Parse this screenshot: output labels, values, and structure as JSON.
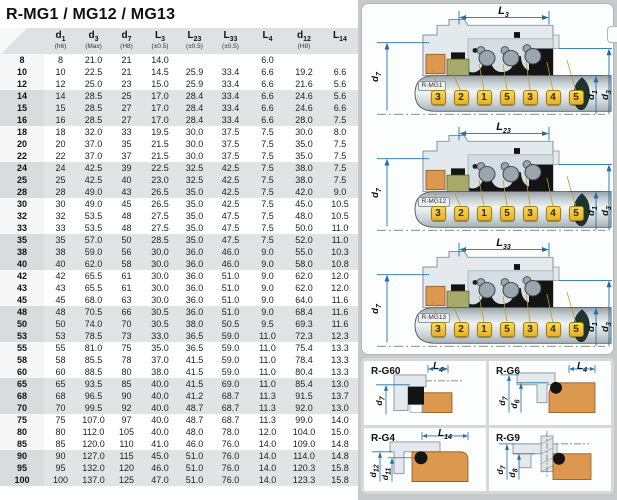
{
  "title": "R-MG1 / MG12 / MG13",
  "colors": {
    "accent_blue": "#2270a8",
    "callout_yellow": "#f3c73f",
    "seal_orange": "#dd9850",
    "seal_olive": "#a6a96b",
    "band_gray": "#e2e3e5",
    "header_gray": "#dfe1e2"
  },
  "table": {
    "columns": [
      {
        "main": "d",
        "sub": "1",
        "tol": "(h6)"
      },
      {
        "main": "d",
        "sub": "3",
        "tol": "(Max)"
      },
      {
        "main": "d",
        "sub": "7",
        "tol": "(H8)"
      },
      {
        "main": "L",
        "sub": "3",
        "tol": "(±0.5)"
      },
      {
        "main": "L",
        "sub": "23",
        "tol": "(±0.5)"
      },
      {
        "main": "L",
        "sub": "33",
        "tol": "(±0.5)"
      },
      {
        "main": "L",
        "sub": "4",
        "tol": ""
      },
      {
        "main": "d",
        "sub": "12",
        "tol": "(H8)"
      },
      {
        "main": "L",
        "sub": "14",
        "tol": ""
      }
    ],
    "rows": [
      [
        "8",
        "8",
        "21.0",
        "21",
        "14.0",
        "",
        "",
        "6.0",
        "",
        ""
      ],
      [
        "10",
        "10",
        "22.5",
        "21",
        "14.5",
        "25.9",
        "33.4",
        "6.6",
        "19.2",
        "6.6"
      ],
      [
        "12",
        "12",
        "25.0",
        "23",
        "15.0",
        "25.9",
        "33.4",
        "6.6",
        "21.6",
        "5.6"
      ],
      [
        "14",
        "14",
        "28.5",
        "25",
        "17.0",
        "28.4",
        "33.4",
        "6.6",
        "24.6",
        "5.6"
      ],
      [
        "15",
        "15",
        "28.5",
        "27",
        "17.0",
        "28.4",
        "33.4",
        "6.6",
        "24.6",
        "6.6"
      ],
      [
        "16",
        "16",
        "28.5",
        "27",
        "17.0",
        "28.4",
        "33.4",
        "6.6",
        "28.0",
        "7.5"
      ],
      [
        "18",
        "18",
        "32.0",
        "33",
        "19.5",
        "30.0",
        "37.5",
        "7.5",
        "30.0",
        "8.0"
      ],
      [
        "20",
        "20",
        "37.0",
        "35",
        "21.5",
        "30.0",
        "37.5",
        "7.5",
        "35.0",
        "7.5"
      ],
      [
        "22",
        "22",
        "37.0",
        "37",
        "21.5",
        "30.0",
        "37.5",
        "7.5",
        "35.0",
        "7.5"
      ],
      [
        "24",
        "24",
        "42.5",
        "39",
        "22.5",
        "32.5",
        "42.5",
        "7.5",
        "38.0",
        "7.5"
      ],
      [
        "25",
        "25",
        "42.5",
        "40",
        "23.0",
        "32.5",
        "42.5",
        "7.5",
        "38.0",
        "7.5"
      ],
      [
        "28",
        "28",
        "49.0",
        "43",
        "26.5",
        "35.0",
        "42.5",
        "7.5",
        "42.0",
        "9.0"
      ],
      [
        "30",
        "30",
        "49.0",
        "45",
        "26.5",
        "35.0",
        "42.5",
        "7.5",
        "45.0",
        "10.5"
      ],
      [
        "32",
        "32",
        "53.5",
        "48",
        "27.5",
        "35.0",
        "47.5",
        "7.5",
        "48.0",
        "10.5"
      ],
      [
        "33",
        "33",
        "53.5",
        "48",
        "27.5",
        "35.0",
        "47.5",
        "7.5",
        "50.0",
        "11.0"
      ],
      [
        "35",
        "35",
        "57.0",
        "50",
        "28.5",
        "35.0",
        "47.5",
        "7.5",
        "52.0",
        "11.0"
      ],
      [
        "38",
        "38",
        "59.0",
        "56",
        "30.0",
        "36.0",
        "46.0",
        "9.0",
        "55.0",
        "10.3"
      ],
      [
        "40",
        "40",
        "62.0",
        "58",
        "30.0",
        "36.0",
        "46.0",
        "9.0",
        "58.0",
        "10.8"
      ],
      [
        "42",
        "42",
        "65.5",
        "61",
        "30.0",
        "36.0",
        "51.0",
        "9.0",
        "62.0",
        "12.0"
      ],
      [
        "43",
        "43",
        "65.5",
        "61",
        "30.0",
        "36.0",
        "51.0",
        "9.0",
        "62.0",
        "12.0"
      ],
      [
        "45",
        "45",
        "68.0",
        "63",
        "30.0",
        "36.0",
        "51.0",
        "9.0",
        "64.0",
        "11.6"
      ],
      [
        "48",
        "48",
        "70.5",
        "66",
        "30.5",
        "36.0",
        "51.0",
        "9.0",
        "68.4",
        "11.6"
      ],
      [
        "50",
        "50",
        "74.0",
        "70",
        "30.5",
        "38.0",
        "50.5",
        "9.5",
        "69.3",
        "11.6"
      ],
      [
        "53",
        "53",
        "78.5",
        "73",
        "33.0",
        "36.5",
        "59.0",
        "11.0",
        "72.3",
        "12.3"
      ],
      [
        "55",
        "55",
        "81.0",
        "75",
        "35.0",
        "36.5",
        "59.0",
        "11.0",
        "75.4",
        "13.3"
      ],
      [
        "58",
        "58",
        "85.5",
        "78",
        "37.0",
        "41.5",
        "59.0",
        "11.0",
        "78.4",
        "13.3"
      ],
      [
        "60",
        "60",
        "88.5",
        "80",
        "38.0",
        "41.5",
        "59.0",
        "11.0",
        "80.4",
        "13.3"
      ],
      [
        "65",
        "65",
        "93.5",
        "85",
        "40.0",
        "41.5",
        "69.0",
        "11.0",
        "85.4",
        "13.0"
      ],
      [
        "68",
        "68",
        "96.5",
        "90",
        "40.0",
        "41.2",
        "68.7",
        "11.3",
        "91.5",
        "13.7"
      ],
      [
        "70",
        "70",
        "99.5",
        "92",
        "40.0",
        "48.7",
        "68.7",
        "11.3",
        "92.0",
        "13.0"
      ],
      [
        "75",
        "75",
        "107.0",
        "97",
        "40.0",
        "48.7",
        "68.7",
        "11.3",
        "99.0",
        "14.0"
      ],
      [
        "80",
        "80",
        "112.0",
        "105",
        "40.0",
        "48.0",
        "78.0",
        "12.0",
        "104.0",
        "15.0"
      ],
      [
        "85",
        "85",
        "120.0",
        "110",
        "41.0",
        "46.0",
        "76.0",
        "14.0",
        "109.0",
        "14.8"
      ],
      [
        "90",
        "90",
        "127.0",
        "115",
        "45.0",
        "51.0",
        "76.0",
        "14.0",
        "114.0",
        "14.8"
      ],
      [
        "95",
        "95",
        "132.0",
        "120",
        "46.0",
        "51.0",
        "76.0",
        "14.0",
        "120.3",
        "15.8"
      ],
      [
        "100",
        "100",
        "137.0",
        "125",
        "47.0",
        "51.0",
        "76.0",
        "14.0",
        "123.3",
        "15.8"
      ]
    ]
  },
  "diagrams": [
    {
      "name": "R-MG1",
      "top_dim": {
        "main": "L",
        "sub": "3"
      },
      "left_dim": {
        "main": "d",
        "sub": "7"
      },
      "right_dim_inner": {
        "main": "d",
        "sub": "1"
      },
      "right_dim_outer": {
        "main": "d",
        "sub": "3"
      },
      "callouts": [
        "3",
        "2",
        "1",
        "5",
        "3",
        "4",
        "5"
      ]
    },
    {
      "name": "R-MG12",
      "top_dim": {
        "main": "L",
        "sub": "23"
      },
      "left_dim": {
        "main": "d",
        "sub": "7"
      },
      "right_dim_inner": {
        "main": "d",
        "sub": "1"
      },
      "right_dim_outer": {
        "main": "d",
        "sub": "3"
      },
      "callouts": [
        "3",
        "2",
        "1",
        "5",
        "3",
        "4",
        "5"
      ]
    },
    {
      "name": "R-MG13",
      "top_dim": {
        "main": "L",
        "sub": "33"
      },
      "left_dim": {
        "main": "d",
        "sub": "7"
      },
      "right_dim_inner": {
        "main": "d",
        "sub": "1"
      },
      "right_dim_outer": {
        "main": "d",
        "sub": "3"
      },
      "callouts": [
        "3",
        "2",
        "1",
        "5",
        "3",
        "4",
        "5"
      ]
    }
  ],
  "seat_diagrams": [
    {
      "name": "R-G60",
      "top_dim": {
        "main": "L",
        "sub": "4"
      },
      "dims": [
        {
          "main": "d",
          "sub": "7"
        }
      ]
    },
    {
      "name": "R-G6",
      "top_dim": {
        "main": "L",
        "sub": "4"
      },
      "dims": [
        {
          "main": "d",
          "sub": "7"
        },
        {
          "main": "d",
          "sub": "6"
        }
      ]
    },
    {
      "name": "R-G4",
      "top_dim": {
        "main": "L",
        "sub": "14"
      },
      "dims": [
        {
          "main": "d",
          "sub": "12"
        },
        {
          "main": "d",
          "sub": "11"
        }
      ]
    },
    {
      "name": "R-G9",
      "top_dim": null,
      "dims": [
        {
          "main": "d",
          "sub": "7"
        },
        {
          "main": "d",
          "sub": "8"
        }
      ]
    }
  ]
}
